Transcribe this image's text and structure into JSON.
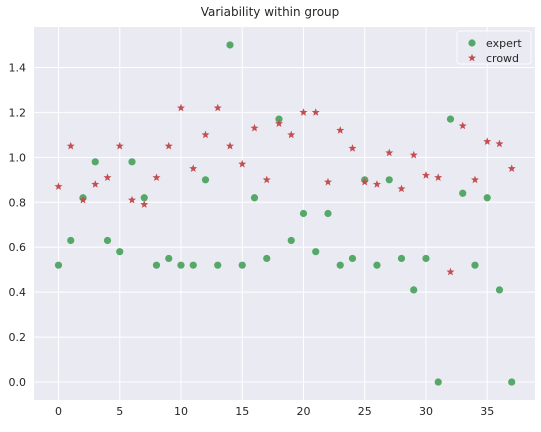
{
  "chart_data": {
    "type": "scatter",
    "title": "Variability within group",
    "xlabel": "",
    "ylabel": "",
    "xlim": [
      -2.0,
      38.9
    ],
    "ylim": [
      -0.08,
      1.58
    ],
    "xticks": [
      0,
      5,
      10,
      15,
      20,
      25,
      30,
      35
    ],
    "xtick_labels": [
      "0",
      "5",
      "10",
      "15",
      "20",
      "25",
      "30",
      "35"
    ],
    "yticks": [
      0.0,
      0.2,
      0.4,
      0.6,
      0.8,
      1.0,
      1.2,
      1.4
    ],
    "ytick_labels": [
      "0.0",
      "0.2",
      "0.4",
      "0.6",
      "0.8",
      "1.0",
      "1.2",
      "1.4"
    ],
    "grid": true,
    "legend_position": "top-right",
    "background": "#eaeaf2",
    "series": [
      {
        "name": "expert",
        "marker": "circle",
        "color": "#55a868",
        "x": [
          0,
          1,
          2,
          3,
          4,
          5,
          6,
          7,
          8,
          9,
          10,
          11,
          12,
          13,
          14,
          15,
          16,
          17,
          18,
          19,
          20,
          21,
          22,
          23,
          24,
          25,
          26,
          27,
          28,
          29,
          30,
          31,
          32,
          33,
          34,
          35,
          36,
          37
        ],
        "y": [
          0.52,
          0.63,
          0.82,
          0.98,
          0.63,
          0.58,
          0.98,
          0.82,
          0.52,
          0.55,
          0.52,
          0.52,
          0.9,
          0.52,
          1.5,
          0.52,
          0.82,
          0.55,
          1.17,
          0.63,
          0.75,
          0.58,
          0.75,
          0.52,
          0.55,
          0.9,
          0.52,
          0.9,
          0.55,
          0.41,
          0.55,
          0.0,
          1.17,
          0.84,
          0.52,
          0.82,
          0.41,
          0.0
        ]
      },
      {
        "name": "crowd",
        "marker": "star",
        "color": "#c44e52",
        "x": [
          0,
          1,
          2,
          3,
          4,
          5,
          6,
          7,
          8,
          9,
          10,
          11,
          12,
          13,
          14,
          15,
          16,
          17,
          18,
          19,
          20,
          21,
          22,
          23,
          24,
          25,
          26,
          27,
          28,
          29,
          30,
          31,
          32,
          33,
          34,
          35,
          36,
          37
        ],
        "y": [
          0.87,
          1.05,
          0.81,
          0.88,
          0.91,
          1.05,
          0.81,
          0.79,
          0.91,
          1.05,
          1.22,
          0.95,
          1.1,
          1.22,
          1.05,
          0.97,
          1.13,
          0.9,
          1.15,
          1.1,
          1.2,
          1.2,
          0.89,
          1.12,
          1.04,
          0.89,
          0.88,
          1.02,
          0.86,
          1.01,
          0.92,
          0.91,
          0.49,
          1.14,
          0.9,
          1.07,
          1.06,
          0.95
        ]
      }
    ]
  }
}
